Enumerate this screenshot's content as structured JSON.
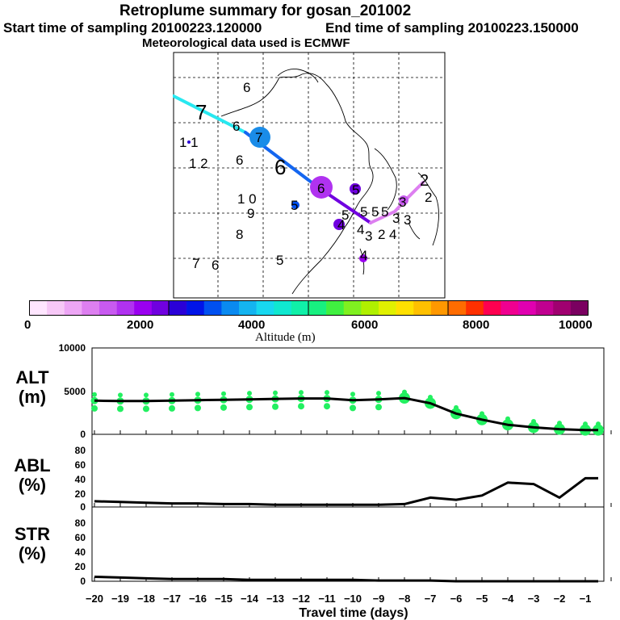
{
  "header": {
    "title": "Retroplume summary for gosan_201002",
    "start_label": "Start time of sampling 20100223.120000",
    "end_label": "End time of sampling 20100223.150000",
    "met_label": "Meteorological data used is ECMWF"
  },
  "map": {
    "labels": [
      "6",
      "7",
      "6",
      "7",
      "1 1",
      "1 2",
      "6",
      "6",
      "6",
      "1 0",
      "9",
      "5",
      "5",
      "8",
      "7",
      "6",
      "5"
    ],
    "numbers_right": [
      "5",
      "5",
      "5",
      "5",
      "3",
      "3",
      "3",
      "4",
      "4",
      "3",
      "2",
      "4",
      "4",
      "2",
      "2"
    ]
  },
  "colorbar": {
    "ticks": [
      "0",
      "2000",
      "4000",
      "6000",
      "8000",
      "10000"
    ],
    "label": "Altitude (m)",
    "colors": [
      "#ffe6ff",
      "#f7c8f7",
      "#eda6f5",
      "#dd7ff0",
      "#c85af0",
      "#b032f0",
      "#9a00f0",
      "#7000e0",
      "#2a00d8",
      "#0014e8",
      "#0050f0",
      "#0a8af0",
      "#14b4f0",
      "#18d8f0",
      "#10e8d0",
      "#10f0a8",
      "#18f080",
      "#40f040",
      "#80f020",
      "#b0f000",
      "#e0f000",
      "#ffe000",
      "#ffc000",
      "#ff9800",
      "#ff6c00",
      "#ff3000",
      "#ff0050",
      "#f00090",
      "#e000b0",
      "#c00090",
      "#a00070",
      "#7a0060"
    ]
  },
  "panels": {
    "alt": {
      "label_line1": "ALT",
      "label_line2": "(m)",
      "yticks": [
        "10000",
        "5000",
        "0"
      ]
    },
    "abl": {
      "label_line1": "ABL",
      "label_line2": "(%)",
      "yticks": [
        "80",
        "60",
        "40",
        "20",
        "0"
      ]
    },
    "str": {
      "label_line1": "STR",
      "label_line2": "(%)",
      "yticks": [
        "80",
        "60",
        "40",
        "20",
        "0"
      ]
    }
  },
  "xaxis": {
    "ticks": [
      "−20",
      "−19",
      "−18",
      "−17",
      "−16",
      "−15",
      "−14",
      "−13",
      "−12",
      "−11",
      "−10",
      "−9",
      "−8",
      "−7",
      "−6",
      "−5",
      "−4",
      "−3",
      "−2",
      "−1"
    ],
    "label": "Travel time (days)"
  },
  "chart_data": [
    {
      "type": "line",
      "title": "ALT (m)",
      "x": [
        -20,
        -19,
        -18,
        -17,
        -16,
        -15,
        -14,
        -13,
        -12,
        -11,
        -10,
        -9,
        -8,
        -7,
        -6,
        -5,
        -4,
        -3,
        -2,
        -1,
        -0.5
      ],
      "values": [
        3900,
        3850,
        3850,
        3900,
        3950,
        4000,
        4050,
        4100,
        4150,
        4150,
        3950,
        4050,
        4200,
        3600,
        2400,
        1700,
        1100,
        800,
        600,
        500,
        500
      ],
      "xlabel": "Travel time (days)",
      "ylabel": "ALT (m)",
      "xlim": [
        -20,
        0
      ],
      "ylim": [
        0,
        10000
      ]
    },
    {
      "type": "line",
      "title": "ABL (%)",
      "x": [
        -20,
        -19,
        -18,
        -17,
        -16,
        -15,
        -14,
        -13,
        -12,
        -11,
        -10,
        -9,
        -8,
        -7,
        -6,
        -5,
        -4,
        -3,
        -2,
        -1,
        -0.5
      ],
      "values": [
        8,
        7,
        6,
        5,
        5,
        4,
        4,
        3,
        3,
        3,
        3,
        3,
        4,
        13,
        10,
        16,
        34,
        32,
        13,
        40,
        40
      ],
      "xlabel": "Travel time (days)",
      "ylabel": "ABL (%)",
      "xlim": [
        -20,
        0
      ],
      "ylim": [
        0,
        90
      ]
    },
    {
      "type": "line",
      "title": "STR (%)",
      "x": [
        -20,
        -19,
        -18,
        -17,
        -16,
        -15,
        -14,
        -13,
        -12,
        -11,
        -10,
        -9,
        -8,
        -7,
        -6,
        -5,
        -4,
        -3,
        -2,
        -1,
        -0.5
      ],
      "values": [
        6,
        5,
        4,
        3,
        3,
        3,
        2,
        2,
        2,
        2,
        2,
        1,
        1,
        1,
        0,
        0,
        0,
        0,
        0,
        0,
        0
      ],
      "xlabel": "Travel time (days)",
      "ylabel": "STR (%)",
      "xlim": [
        -20,
        0
      ],
      "ylim": [
        0,
        90
      ]
    }
  ]
}
